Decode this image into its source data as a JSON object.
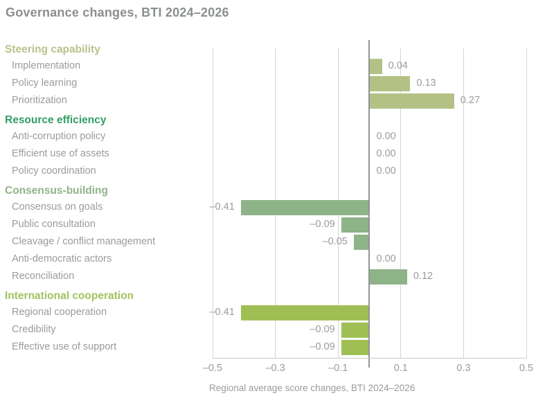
{
  "title": "Governance changes, BTI 2024–2026",
  "colors": {
    "grid": "#d4d4d4",
    "zero_line": "#8f9496",
    "axis_line": "#c9c9c9",
    "title_text": "#8b8e90",
    "item_text": "#9b9b9b",
    "value_text": "#9b9b9b"
  },
  "chart_data": {
    "type": "bar",
    "orientation": "horizontal",
    "title": "Governance changes, BTI 2024–2026",
    "xlabel": "Regional average score changes, BTI 2024–2026",
    "xlim": [
      -0.5,
      0.5
    ],
    "xticks": [
      -0.5,
      -0.3,
      -0.1,
      0.1,
      0.3,
      0.5
    ],
    "tick_labels": [
      "–0.5",
      "–0.3",
      "–0.1",
      "0.1",
      "0.3",
      "0.5"
    ],
    "grid": true,
    "legend": false,
    "groups": [
      {
        "header": "Steering capability",
        "header_color": "#b6c38b",
        "bar_color": "#b3c184",
        "items": [
          {
            "label": "Implementation",
            "value": 0.04,
            "value_label": "0.04"
          },
          {
            "label": "Policy learning",
            "value": 0.13,
            "value_label": "0.13"
          },
          {
            "label": "Prioritization",
            "value": 0.27,
            "value_label": "0.27"
          }
        ]
      },
      {
        "header": "Resource efficiency",
        "header_color": "#339e64",
        "bar_color": "#339e64",
        "items": [
          {
            "label": "Anti-corruption policy",
            "value": 0,
            "value_label": "0.00"
          },
          {
            "label": "Efficient use of assets",
            "value": 0,
            "value_label": "0.00"
          },
          {
            "label": "Policy coordination",
            "value": 0,
            "value_label": "0.00"
          }
        ]
      },
      {
        "header": "Consensus-building",
        "header_color": "#90b489",
        "bar_color": "#8eb388",
        "items": [
          {
            "label": "Consensus on goals",
            "value": -0.41,
            "value_label": "–0.41"
          },
          {
            "label": "Public consultation",
            "value": -0.09,
            "value_label": "–0.09"
          },
          {
            "label": "Cleavage / conflict management",
            "value": -0.05,
            "value_label": "–0.05"
          },
          {
            "label": "Anti-democratic actors",
            "value": 0,
            "value_label": "0.00"
          },
          {
            "label": "Reconciliation",
            "value": 0.12,
            "value_label": "0.12"
          }
        ]
      },
      {
        "header": "International cooperation",
        "header_color": "#a3c35e",
        "bar_color": "#9fbf55",
        "items": [
          {
            "label": "Regional cooperation",
            "value": -0.41,
            "value_label": "–0.41"
          },
          {
            "label": "Credibility",
            "value": -0.09,
            "value_label": "–0.09"
          },
          {
            "label": "Effective use of support",
            "value": -0.09,
            "value_label": "–0.09"
          }
        ]
      }
    ]
  }
}
